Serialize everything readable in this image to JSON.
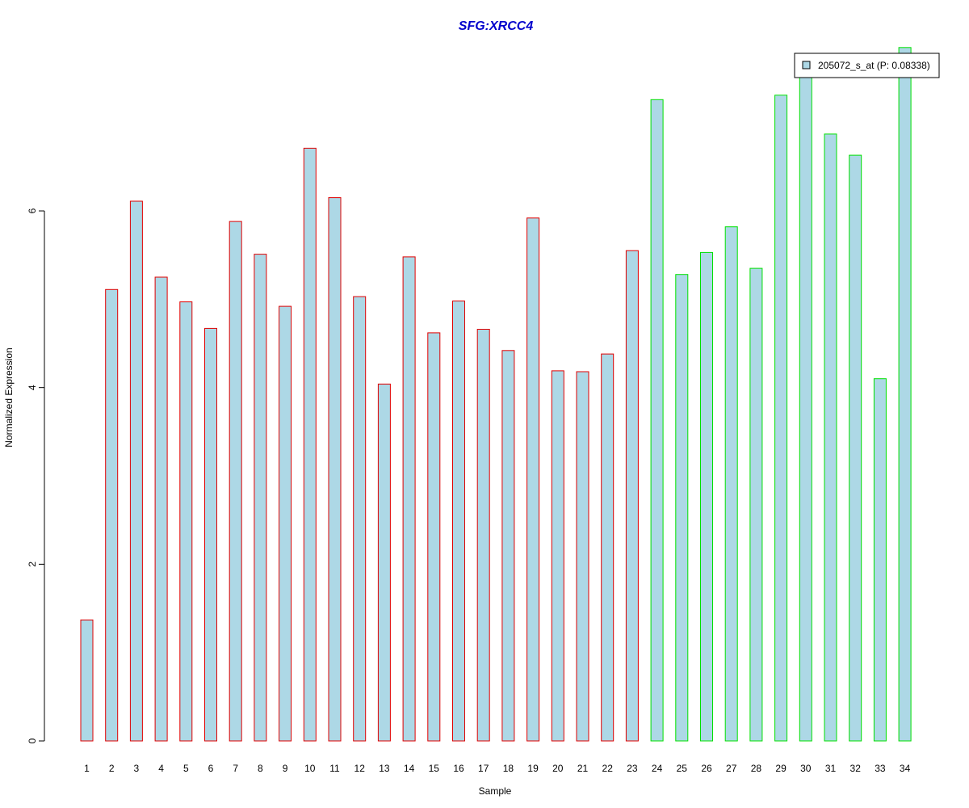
{
  "chart_data": {
    "type": "bar",
    "title": "SFG:XRCC4",
    "xlabel": "Sample",
    "ylabel": "Normalized Expression",
    "categories": [
      "1",
      "2",
      "3",
      "4",
      "5",
      "6",
      "7",
      "8",
      "9",
      "10",
      "11",
      "12",
      "13",
      "14",
      "15",
      "16",
      "17",
      "18",
      "19",
      "20",
      "21",
      "22",
      "23",
      "24",
      "25",
      "26",
      "27",
      "28",
      "29",
      "30",
      "31",
      "32",
      "33",
      "34"
    ],
    "series": [
      {
        "name": "205072_s_at (P: 0.08338)",
        "values": [
          1.37,
          5.11,
          6.11,
          5.25,
          4.97,
          4.67,
          5.88,
          5.51,
          4.92,
          6.71,
          6.15,
          5.03,
          4.04,
          5.48,
          4.62,
          4.98,
          4.66,
          4.42,
          5.92,
          4.19,
          4.18,
          4.38,
          5.55,
          7.26,
          5.28,
          5.53,
          5.82,
          5.35,
          7.31,
          7.67,
          6.87,
          6.63,
          4.1,
          7.85
        ]
      }
    ],
    "group_border_colors": [
      "#e00000",
      "#e00000",
      "#e00000",
      "#e00000",
      "#e00000",
      "#e00000",
      "#e00000",
      "#e00000",
      "#e00000",
      "#e00000",
      "#e00000",
      "#e00000",
      "#e00000",
      "#e00000",
      "#e00000",
      "#e00000",
      "#e00000",
      "#e00000",
      "#e00000",
      "#e00000",
      "#e00000",
      "#e00000",
      "#e00000",
      "#00e000",
      "#00e000",
      "#00e000",
      "#00e000",
      "#00e000",
      "#00e000",
      "#00e000",
      "#00e000",
      "#00e000",
      "#00e000",
      "#00e000"
    ],
    "bar_fill": "#add8e6",
    "title_color": "#0000cc",
    "yticks": [
      "0",
      "2",
      "4",
      "6"
    ],
    "ylim": [
      0,
      7.85
    ],
    "legend_position": "top-right",
    "grid": false
  }
}
